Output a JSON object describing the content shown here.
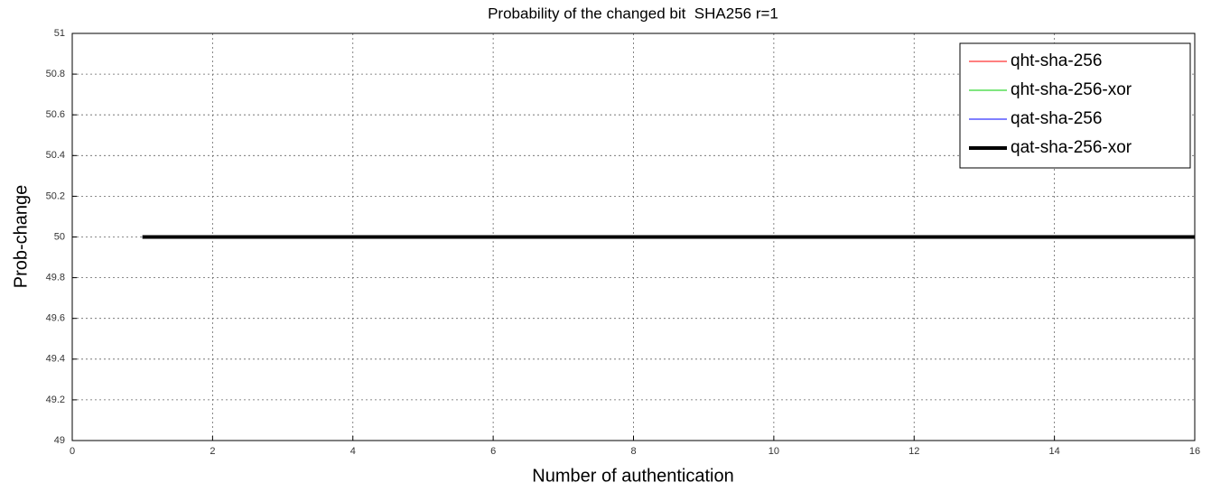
{
  "chart_data": {
    "type": "line",
    "title": "Probability of the changed bit  SHA256 r=1",
    "x_label": "Number of authentication",
    "y_label": "Prob-change",
    "x": [
      1,
      2,
      3,
      4,
      5,
      6,
      7,
      8,
      9,
      10,
      11,
      12,
      13,
      14,
      15,
      16
    ],
    "series": [
      {
        "name": "qht-sha-256",
        "color": "#ff0000",
        "line_width": 1,
        "values": [
          50,
          50,
          50,
          50,
          50,
          50,
          50,
          50,
          50,
          50,
          50,
          50,
          50,
          50,
          50,
          50
        ]
      },
      {
        "name": "qht-sha-256-xor",
        "color": "#00cc00",
        "line_width": 1,
        "values": [
          50,
          50,
          50,
          50,
          50,
          50,
          50,
          50,
          50,
          50,
          50,
          50,
          50,
          50,
          50,
          50
        ]
      },
      {
        "name": "qat-sha-256",
        "color": "#0000ff",
        "line_width": 1,
        "values": [
          50,
          50,
          50,
          50,
          50,
          50,
          50,
          50,
          50,
          50,
          50,
          50,
          50,
          50,
          50,
          50
        ]
      },
      {
        "name": "qat-sha-256-xor",
        "color": "#000000",
        "line_width": 4,
        "values": [
          50,
          50,
          50,
          50,
          50,
          50,
          50,
          50,
          50,
          50,
          50,
          50,
          50,
          50,
          50,
          50
        ]
      }
    ],
    "xlim": [
      0,
      16
    ],
    "xticks": [
      0,
      2,
      4,
      6,
      8,
      10,
      12,
      14,
      16
    ],
    "ylim": [
      49,
      51
    ],
    "yticks": [
      49,
      49.2,
      49.4,
      49.6,
      49.8,
      50,
      50.2,
      50.4,
      50.6,
      50.8,
      51
    ],
    "grid": true,
    "legend": "northeast"
  }
}
